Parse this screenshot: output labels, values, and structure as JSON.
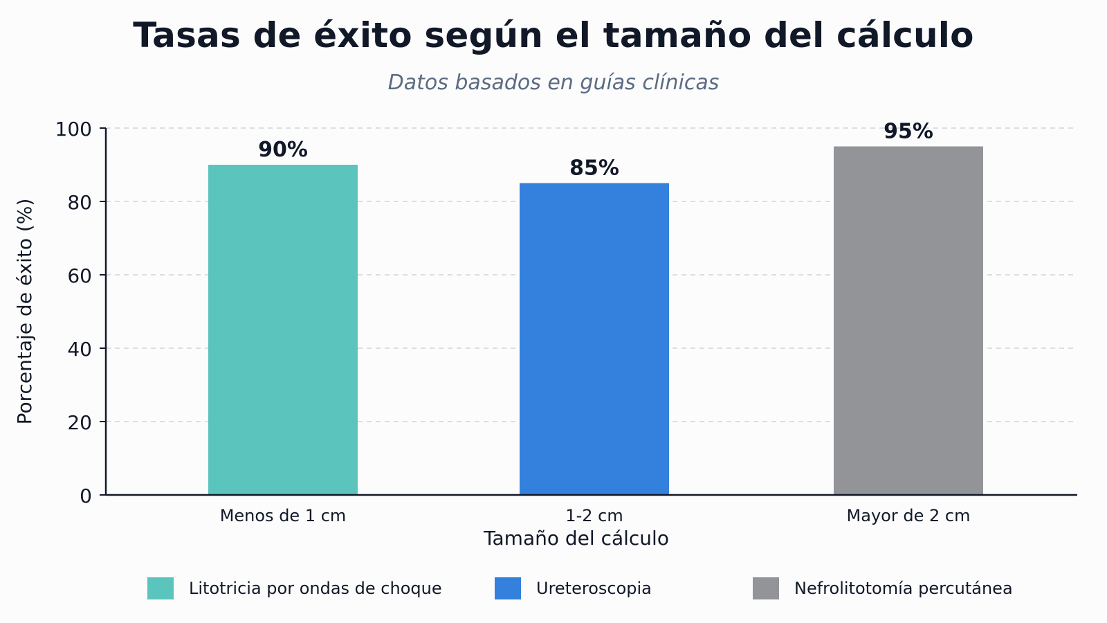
{
  "chart_data": {
    "type": "bar",
    "title": "Tasas de éxito según el tamaño del cálculo",
    "subtitle": "Datos basados en guías clínicas",
    "xlabel": "Tamaño del cálculo",
    "ylabel": "Porcentaje de éxito (%)",
    "ylim": [
      0,
      100
    ],
    "yticks": [
      0,
      20,
      40,
      60,
      80,
      100
    ],
    "grid": true,
    "categories": [
      "Menos de 1 cm",
      "1-2 cm",
      "Mayor de 2 cm"
    ],
    "values": [
      90,
      85,
      95
    ],
    "data_labels": [
      "90%",
      "85%",
      "95%"
    ],
    "colors": [
      "#5bc5bd",
      "#3381dd",
      "#939497"
    ],
    "legend_position": "bottom",
    "legend": [
      {
        "label": "Litotricia por ondas de choque",
        "color": "#5bc5bd"
      },
      {
        "label": "Ureteroscopia",
        "color": "#3381dd"
      },
      {
        "label": "Nefrolitotomía percutánea",
        "color": "#939497"
      }
    ]
  }
}
